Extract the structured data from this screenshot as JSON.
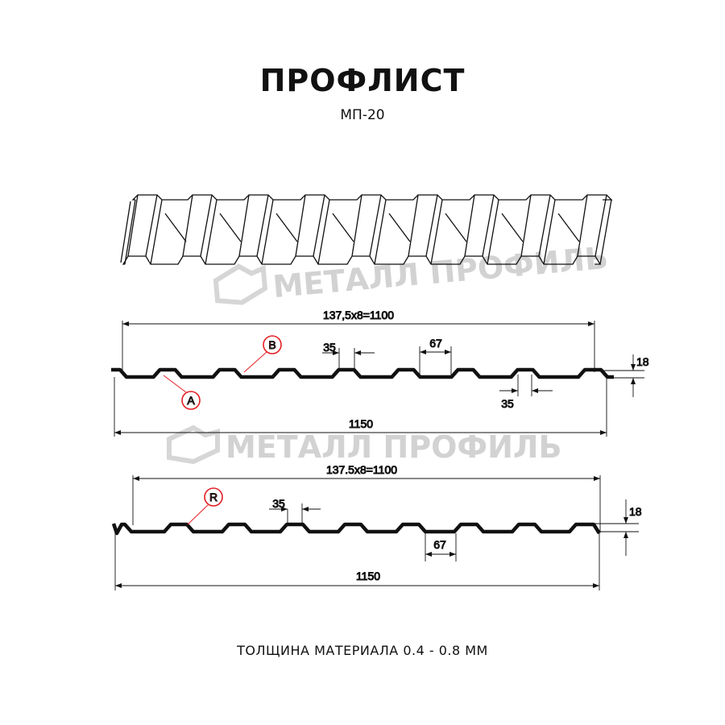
{
  "header": {
    "title": "ПРОФЛИСТ",
    "subtitle": "МП-20"
  },
  "watermark": {
    "text": "МЕТАЛЛ ПРОФИЛЬ"
  },
  "profile_a": {
    "pitch_label": "137,5х8=1100",
    "width_label": "1150",
    "height_label": "18",
    "top_width_label": "35",
    "bottom_width_label": "35",
    "trough_label": "67",
    "marker_a": "A",
    "marker_b": "B"
  },
  "profile_r": {
    "pitch_label": "137.5x8=1100",
    "width_label": "1150",
    "height_label": "18",
    "top_width_label": "35",
    "trough_label": "67",
    "marker_r": "R"
  },
  "footer": {
    "thickness": "ТОЛЩИНА МАТЕРИАЛА 0.4 - 0.8 ММ"
  },
  "colors": {
    "profile": "#111111",
    "marker": "#e31e24",
    "watermark": "#d2d2d2"
  }
}
